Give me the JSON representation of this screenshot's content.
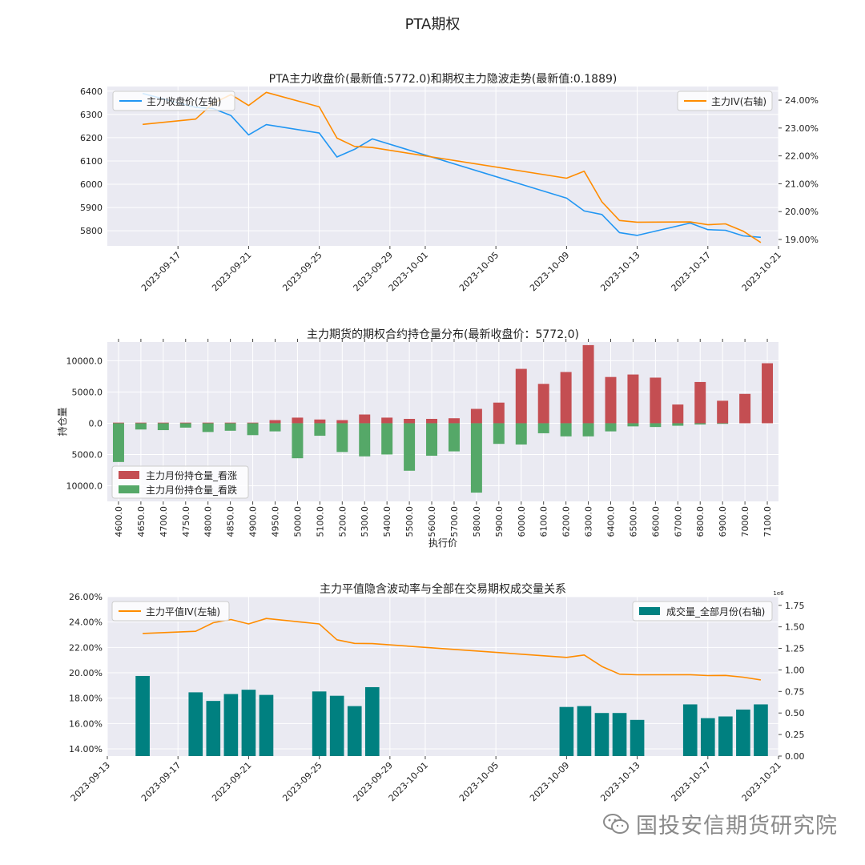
{
  "suptitle": "PTA期权",
  "watermark": {
    "text": "国投安信期货研究院",
    "icon": "wechat-icon"
  },
  "colors": {
    "blue": "#2196F3",
    "orange": "#FF8C00",
    "call_bar": "#c44e52",
    "put_bar": "#55a868",
    "teal": "#008080",
    "axes_bg": "#eaeaf2",
    "grid": "#ffffff"
  },
  "chart_data": [
    {
      "id": "chart1",
      "type": "line",
      "title": "PTA主力收盘价(最新值:5772.0)和期权主力隐波走势(最新值:0.1889)",
      "x_ticks": [
        "2023-09-17",
        "2023-09-21",
        "2023-09-25",
        "2023-09-29",
        "2023-10-01",
        "2023-10-05",
        "2023-10-09",
        "2023-10-13",
        "2023-10-17",
        "2023-10-21"
      ],
      "xlim": [
        "2023-09-13",
        "2023-10-21"
      ],
      "left_axis": {
        "ylim": [
          5735,
          6420
        ],
        "ticks": [
          5800,
          5900,
          6000,
          6100,
          6200,
          6300,
          6400
        ]
      },
      "right_axis": {
        "ylim": [
          0.1877,
          0.2449
        ],
        "ticks": [
          "19.00%",
          "20.00%",
          "21.00%",
          "22.00%",
          "23.00%",
          "24.00%"
        ],
        "tick_values": [
          0.19,
          0.2,
          0.21,
          0.22,
          0.23,
          0.24
        ]
      },
      "series": [
        {
          "name": "主力收盘价(左轴)",
          "axis": "left",
          "color": "#2196F3",
          "x": [
            "2023-09-15",
            "2023-09-18",
            "2023-09-19",
            "2023-09-20",
            "2023-09-21",
            "2023-09-22",
            "2023-09-25",
            "2023-09-26",
            "2023-09-27",
            "2023-09-28",
            "2023-10-09",
            "2023-10-10",
            "2023-10-11",
            "2023-10-12",
            "2023-10-13",
            "2023-10-16",
            "2023-10-17",
            "2023-10-18",
            "2023-10-19",
            "2023-10-20"
          ],
          "values": [
            6390,
            6330,
            6325,
            6295,
            6212,
            6256,
            6220,
            6117,
            6150,
            6195,
            5940,
            5885,
            5870,
            5792,
            5780,
            5833,
            5805,
            5802,
            5778,
            5772
          ]
        },
        {
          "name": "主力IV(右轴)",
          "axis": "right",
          "color": "#FF8C00",
          "x": [
            "2023-09-15",
            "2023-09-18",
            "2023-09-19",
            "2023-09-20",
            "2023-09-21",
            "2023-09-22",
            "2023-09-25",
            "2023-09-26",
            "2023-09-27",
            "2023-09-28",
            "2023-10-09",
            "2023-10-10",
            "2023-10-11",
            "2023-10-12",
            "2023-10-13",
            "2023-10-16",
            "2023-10-17",
            "2023-10-18",
            "2023-10-19",
            "2023-10-20"
          ],
          "values": [
            0.2313,
            0.2332,
            0.2389,
            0.242,
            0.2381,
            0.2428,
            0.2376,
            0.2264,
            0.2234,
            0.223,
            0.212,
            0.2145,
            0.2035,
            0.1968,
            0.1962,
            0.1963,
            0.1953,
            0.1956,
            0.193,
            0.1889
          ]
        }
      ],
      "legend": [
        {
          "text": "主力收盘价(左轴)",
          "placement": "upper-left"
        },
        {
          "text": "主力IV(右轴)",
          "placement": "upper-right"
        }
      ]
    },
    {
      "id": "chart2",
      "type": "bar",
      "title": "主力期货的期权合约持仓量分布(最新收盘价：5772.0)",
      "xlabel": "执行价",
      "ylabel": "持仓量",
      "ylim": [
        -12500,
        13000
      ],
      "y_ticks": [
        10000,
        5000,
        0,
        -5000,
        -10000
      ],
      "y_tick_labels": [
        "10000.0",
        "5000.0",
        "0.0",
        "5000.0",
        "10000.0"
      ],
      "categories": [
        "4600.0",
        "4650.0",
        "4700.0",
        "4750.0",
        "4800.0",
        "4850.0",
        "4900.0",
        "4950.0",
        "5000.0",
        "5100.0",
        "5200.0",
        "5300.0",
        "5400.0",
        "5500.0",
        "5600.0",
        "5700.0",
        "5800.0",
        "5900.0",
        "6000.0",
        "6100.0",
        "6200.0",
        "6300.0",
        "6400.0",
        "6500.0",
        "6600.0",
        "6700.0",
        "6800.0",
        "6900.0",
        "7000.0",
        "7100.0"
      ],
      "series": [
        {
          "name": "主力月份持仓量_看涨",
          "color": "#c44e52",
          "values": [
            100,
            100,
            100,
            100,
            100,
            100,
            100,
            500,
            900,
            600,
            500,
            1400,
            900,
            700,
            700,
            800,
            2300,
            3300,
            8700,
            6300,
            8200,
            12500,
            7400,
            7800,
            7300,
            3000,
            6600,
            3600,
            4700,
            9600
          ]
        },
        {
          "name": "主力月份持仓量_看跌",
          "color": "#55a868",
          "values": [
            -6200,
            -1000,
            -1100,
            -700,
            -1400,
            -1200,
            -1900,
            -1300,
            -5600,
            -2000,
            -4600,
            -5300,
            -5000,
            -7600,
            -5200,
            -4500,
            -11100,
            -3300,
            -3400,
            -1600,
            -2100,
            -2100,
            -1300,
            -500,
            -600,
            -400,
            -200,
            -100,
            0,
            0
          ]
        }
      ],
      "legend": [
        {
          "text": "主力月份持仓量_看涨"
        },
        {
          "text": "主力月份持仓量_看跌"
        }
      ],
      "legend_placement": "lower-left"
    },
    {
      "id": "chart3",
      "type": "bar",
      "title": "主力平值隐含波动率与全部在交易期权成交量关系",
      "x_ticks": [
        "2023-09-13",
        "2023-09-17",
        "2023-09-21",
        "2023-09-25",
        "2023-09-29",
        "2023-10-01",
        "2023-10-05",
        "2023-10-09",
        "2023-10-13",
        "2023-10-17",
        "2023-10-21"
      ],
      "xlim": [
        "2023-09-13",
        "2023-10-21"
      ],
      "left_axis": {
        "ylim": [
          0.1343,
          0.26
        ],
        "ticks": [
          "14.00%",
          "16.00%",
          "18.00%",
          "20.00%",
          "22.00%",
          "24.00%",
          "26.00%"
        ],
        "tick_values": [
          0.14,
          0.16,
          0.18,
          0.2,
          0.22,
          0.24,
          0.26
        ]
      },
      "right_axis": {
        "ylim": [
          0,
          1.85
        ],
        "ticks": [
          "0.00",
          "0.25",
          "0.50",
          "0.75",
          "1.00",
          "1.25",
          "1.50",
          "1.75"
        ],
        "tick_values": [
          0,
          0.25,
          0.5,
          0.75,
          1.0,
          1.25,
          1.5,
          1.75
        ],
        "offset_label": "1e6"
      },
      "series": [
        {
          "name": "主力平值IV(左轴)",
          "axis": "left",
          "type": "line",
          "color": "#FF8C00",
          "x": [
            "2023-09-15",
            "2023-09-18",
            "2023-09-19",
            "2023-09-20",
            "2023-09-21",
            "2023-09-22",
            "2023-09-25",
            "2023-09-26",
            "2023-09-27",
            "2023-09-28",
            "2023-10-09",
            "2023-10-10",
            "2023-10-11",
            "2023-10-12",
            "2023-10-13",
            "2023-10-16",
            "2023-10-17",
            "2023-10-18",
            "2023-10-19",
            "2023-10-20"
          ],
          "values": [
            0.231,
            0.2327,
            0.2395,
            0.242,
            0.2385,
            0.2428,
            0.2385,
            0.226,
            0.2232,
            0.223,
            0.2121,
            0.214,
            0.205,
            0.1989,
            0.1984,
            0.1985,
            0.1978,
            0.1979,
            0.1965,
            0.1944
          ]
        },
        {
          "name": "成交量_全部月份(右轴)",
          "axis": "right",
          "type": "bar",
          "color": "#008080",
          "x": [
            "2023-09-15",
            "2023-09-18",
            "2023-09-19",
            "2023-09-20",
            "2023-09-21",
            "2023-09-22",
            "2023-09-25",
            "2023-09-26",
            "2023-09-27",
            "2023-09-28",
            "2023-10-09",
            "2023-10-10",
            "2023-10-11",
            "2023-10-12",
            "2023-10-13",
            "2023-10-16",
            "2023-10-17",
            "2023-10-18",
            "2023-10-19",
            "2023-10-20"
          ],
          "values": [
            0.93,
            0.74,
            0.64,
            0.72,
            0.77,
            0.71,
            0.75,
            0.7,
            0.58,
            0.8,
            0.57,
            0.58,
            0.5,
            0.5,
            0.42,
            0.6,
            0.44,
            0.46,
            0.54,
            0.6
          ]
        }
      ],
      "legend": [
        {
          "text": "主力平值IV(左轴)",
          "placement": "upper-left"
        },
        {
          "text": "成交量_全部月份(右轴)",
          "placement": "upper-right"
        }
      ]
    }
  ]
}
